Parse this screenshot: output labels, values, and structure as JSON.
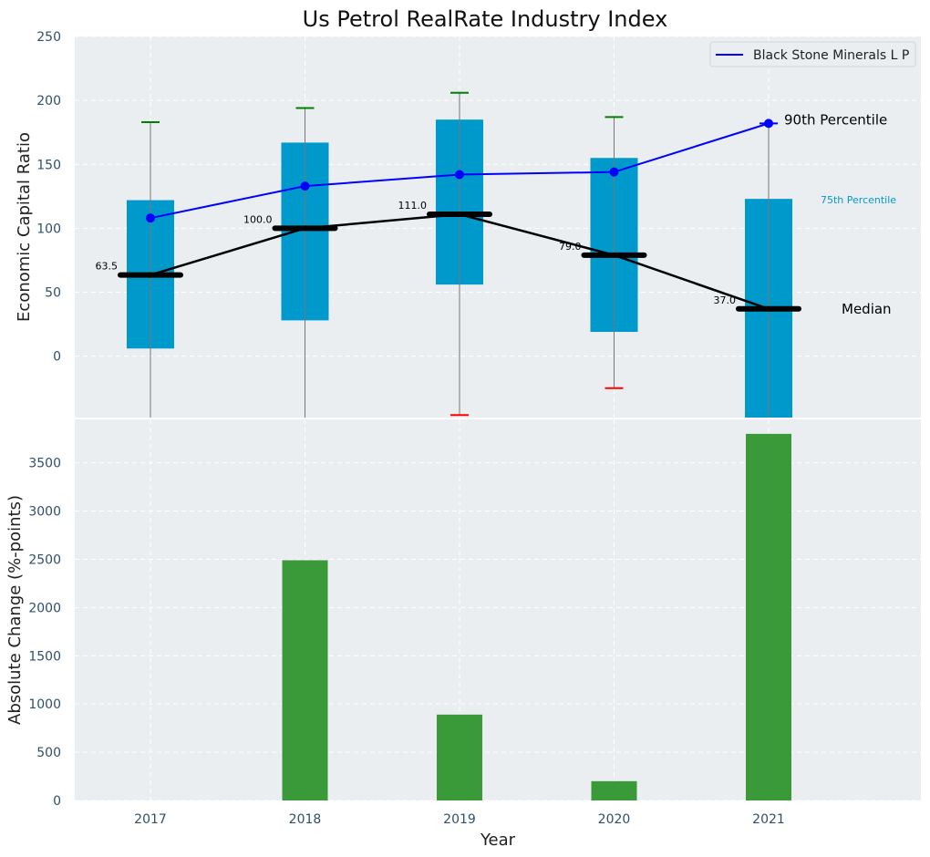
{
  "chart_data": {
    "type": "box+line+bar",
    "title": "Us Petrol RealRate Industry Index",
    "xlabel": "Year",
    "categories": [
      "2017",
      "2018",
      "2019",
      "2020",
      "2021"
    ],
    "top_panel": {
      "ylabel": "Economic Capital Ratio",
      "ylim": [
        -48,
        250
      ],
      "yticks": [
        0,
        50,
        100,
        150,
        200,
        250
      ],
      "grid": true,
      "boxes": [
        {
          "year": "2017",
          "q1": 6,
          "q3": 122,
          "median": 63.5,
          "median_label": "63.5",
          "p90": 108,
          "whisker_high": 183,
          "whisker_high_color": "green",
          "whisker_low": null,
          "whisker_low_color": null
        },
        {
          "year": "2018",
          "q1": 28,
          "q3": 167,
          "median": 100.0,
          "median_label": "100.0",
          "p90": 133,
          "whisker_high": 194,
          "whisker_high_color": "green",
          "whisker_low": null,
          "whisker_low_color": null
        },
        {
          "year": "2019",
          "q1": 56,
          "q3": 185,
          "median": 111.0,
          "median_label": "111.0",
          "p90": 142,
          "whisker_high": 206,
          "whisker_high_color": "green",
          "whisker_low": -46,
          "whisker_low_color": "red"
        },
        {
          "year": "2020",
          "q1": 19,
          "q3": 155,
          "median": 79.0,
          "median_label": "79.0",
          "p90": 144,
          "whisker_high": 187,
          "whisker_high_color": "green",
          "whisker_low": -25,
          "whisker_low_color": "red"
        },
        {
          "year": "2021",
          "q1": -48,
          "q3": 123,
          "median": 37.0,
          "median_label": "37.0",
          "p90": 182,
          "whisker_high": 182,
          "whisker_high_color": "blue",
          "whisker_low": null,
          "whisker_low_color": null
        }
      ],
      "line_series": {
        "name": "Black Stone Minerals L P",
        "values": [
          108,
          133,
          142,
          144,
          182
        ]
      },
      "legend_position": "top-right",
      "annotations": {
        "p90_label": "90th Percentile",
        "p75_label": "75th Percentile",
        "median_label": "Median"
      }
    },
    "bottom_panel": {
      "ylabel": "Absolute Change (%-points)",
      "ylim": [
        0,
        3950
      ],
      "yticks": [
        0,
        500,
        1000,
        1500,
        2000,
        2500,
        3000,
        3500
      ],
      "grid": true,
      "values": [
        0,
        2490,
        890,
        200,
        3800
      ]
    },
    "colors": {
      "box_fill": "#0099cc",
      "line": "#0000ff",
      "median": "#000000",
      "bar": "#3a9a3a",
      "whisker_green": "#008000",
      "whisker_red": "#ff0000",
      "axes_bg": "#eaeef0",
      "grid": "#ffffff",
      "tick_text": "#2f4f6f",
      "p75_text": "#0099cc"
    }
  }
}
